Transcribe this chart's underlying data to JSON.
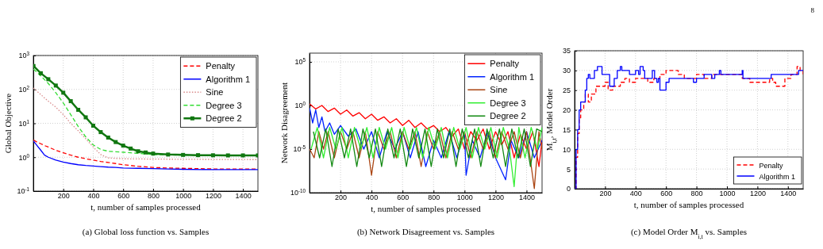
{
  "chart_data": [
    {
      "type": "line",
      "title": "(a) Global loss function vs. Samples",
      "xlabel": "t, number of samples processed",
      "ylabel": "Global Objective",
      "log": "y",
      "grid": true,
      "legend": "top right",
      "xlim": [
        0,
        1500
      ],
      "xticks": [
        200,
        400,
        600,
        800,
        1000,
        1200,
        1400
      ],
      "ylim": [
        0.1,
        1000
      ],
      "yticks": [
        {
          "value": 0.1,
          "label": "10$^{-1}$"
        },
        {
          "value": 1,
          "label": "10$^{0}$"
        },
        {
          "value": 10,
          "label": "10$^{1}$"
        },
        {
          "value": 100,
          "label": "10$^{2}$"
        },
        {
          "value": 1000,
          "label": "10$^{3}$"
        }
      ],
      "series": [
        {
          "name": "Penalty",
          "color": "#ff0000",
          "line_style": "dashed",
          "x": [
            1,
            25,
            50,
            75,
            100,
            150,
            200,
            250,
            300,
            350,
            400,
            450,
            500,
            550,
            600,
            650,
            700,
            750,
            800,
            900,
            1000,
            1100,
            1200,
            1300,
            1400,
            1500
          ],
          "values": [
            3.2,
            2.8,
            2.5,
            2.2,
            2,
            1.6,
            1.35,
            1.15,
            1,
            0.9,
            0.82,
            0.75,
            0.7,
            0.65,
            0.6,
            0.57,
            0.54,
            0.52,
            0.5,
            0.48,
            0.47,
            0.46,
            0.45,
            0.45,
            0.45,
            0.45
          ]
        },
        {
          "name": "Algorithm 1",
          "color": "#0000ff",
          "line_style": "solid",
          "x": [
            1,
            25,
            50,
            75,
            100,
            150,
            200,
            250,
            300,
            350,
            400,
            450,
            500,
            550,
            600,
            700,
            800,
            900,
            1000,
            1200,
            1500
          ],
          "values": [
            3,
            2.2,
            1.6,
            1.15,
            1,
            0.82,
            0.72,
            0.65,
            0.6,
            0.57,
            0.55,
            0.53,
            0.51,
            0.5,
            0.48,
            0.47,
            0.46,
            0.45,
            0.44,
            0.43,
            0.43
          ]
        },
        {
          "name": "Sine",
          "color": "#d98c8c",
          "line_style": "dotted",
          "x": [
            1,
            50,
            100,
            150,
            200,
            250,
            300,
            350,
            400,
            450,
            500,
            600,
            800,
            1000,
            1200,
            1500
          ],
          "values": [
            110,
            70,
            45,
            30,
            18,
            10,
            6,
            3.5,
            2,
            1.2,
            0.95,
            0.9,
            0.88,
            0.87,
            0.86,
            0.85
          ]
        },
        {
          "name": "Degree 3",
          "color": "#33dd33",
          "line_style": "dashed",
          "x": [
            1,
            50,
            100,
            150,
            200,
            250,
            300,
            350,
            400,
            450,
            500,
            550,
            600,
            650,
            700,
            800,
            1000,
            1500
          ],
          "values": [
            400,
            250,
            150,
            80,
            40,
            18,
            8,
            4,
            2.3,
            1.7,
            1.5,
            1.45,
            1.4,
            1.35,
            1.3,
            1.2,
            1.15,
            1.12
          ]
        },
        {
          "name": "Degree 2",
          "color": "#117711",
          "line_style": "solid",
          "marker": "square",
          "x": [
            1,
            50,
            100,
            150,
            200,
            250,
            300,
            350,
            400,
            450,
            500,
            550,
            600,
            650,
            700,
            750,
            800,
            900,
            1000,
            1100,
            1200,
            1300,
            1400,
            1500
          ],
          "values": [
            490,
            300,
            200,
            130,
            80,
            45,
            25,
            15,
            8.5,
            5.5,
            3.8,
            2.8,
            2.2,
            1.8,
            1.5,
            1.38,
            1.28,
            1.2,
            1.17,
            1.15,
            1.14,
            1.13,
            1.13,
            1.13
          ]
        }
      ]
    },
    {
      "type": "line",
      "title": "(b) Network Disagreement vs. Samples",
      "xlabel": "t, number of samples processed",
      "ylabel": "Network Disagreement",
      "log": "y",
      "grid": true,
      "legend": "top right",
      "xlim": [
        0,
        1500
      ],
      "xticks": [
        200,
        400,
        600,
        800,
        1000,
        1200,
        1400
      ],
      "ylim": [
        1e-10,
        1000000.0
      ],
      "yticks": [
        {
          "value": 1e-10,
          "label": "10$^{-10}$"
        },
        {
          "value": 1e-05,
          "label": "10$^{-5}$"
        },
        {
          "value": 1,
          "label": "10$^{0}$"
        },
        {
          "value": 100000.0,
          "label": "10$^{5}$"
        }
      ],
      "series": [
        {
          "name": "Penalty",
          "color": "#ff0000",
          "x": [
            1,
            40,
            80,
            120,
            160,
            200,
            240,
            280,
            320,
            360,
            400,
            440,
            480,
            520,
            560,
            600,
            640,
            680,
            720,
            760,
            800,
            840,
            880,
            920,
            960,
            1000,
            1040,
            1080,
            1120,
            1160,
            1200,
            1240,
            1280,
            1320,
            1360,
            1400,
            1440,
            1480,
            1500
          ],
          "values": [
            1.5,
            0.4,
            1,
            0.2,
            0.5,
            0.1,
            0.3,
            0.06,
            0.15,
            0.03,
            0.1,
            0.02,
            0.05,
            0.01,
            0.03,
            0.005,
            0.02,
            0.003,
            0.01,
            0.002,
            0.005,
            0.001,
            0.003,
            0.0003,
            0.002,
            1e-05,
            0.001,
            0.0001,
            0.002,
            1e-05,
            0.001,
            3e-05,
            0.001,
            1e-06,
            0.0005,
            1e-05,
            0.001,
            1e-07,
            0.0001
          ]
        },
        {
          "name": "Algorithm 1",
          "color": "#0022ff",
          "x": [
            1,
            20,
            40,
            60,
            80,
            100,
            130,
            160,
            200,
            250,
            300,
            350,
            400,
            450,
            500,
            550,
            600,
            650,
            700,
            750,
            800,
            850,
            900,
            950,
            1000,
            1010,
            1050,
            1100,
            1150,
            1200,
            1265,
            1300,
            1350,
            1400,
            1450,
            1500
          ],
          "values": [
            0.5,
            0.01,
            0.3,
            0.003,
            0.05,
            0.001,
            0.01,
            0.0005,
            0.005,
            0.0003,
            0.002,
            1e-05,
            0.001,
            1e-06,
            0.001,
            1e-05,
            0.001,
            1e-06,
            0.001,
            1e-07,
            0.0001,
            1e-06,
            0.001,
            1e-06,
            0.001,
            1e-08,
            0.0001,
            1e-06,
            0.001,
            1e-06,
            3e-09,
            0.0001,
            1e-06,
            0.001,
            1e-06,
            0.0001
          ]
        },
        {
          "name": "Sine",
          "color": "#aa4411",
          "x": [
            1,
            30,
            60,
            90,
            120,
            160,
            200,
            240,
            280,
            320,
            360,
            400,
            440,
            480,
            520,
            560,
            600,
            640,
            680,
            720,
            760,
            800,
            840,
            880,
            920,
            960,
            1000,
            1040,
            1080,
            1120,
            1160,
            1200,
            1240,
            1280,
            1320,
            1360,
            1400,
            1450,
            1480,
            1500
          ],
          "values": [
            1e-05,
            1e-06,
            0.001,
            1e-05,
            0.001,
            1e-06,
            0.001,
            1e-05,
            0.001,
            1e-06,
            0.001,
            1e-08,
            0.001,
            1e-05,
            0.001,
            1e-06,
            0.001,
            1e-05,
            0.001,
            1e-07,
            0.001,
            1e-05,
            0.001,
            1e-06,
            0.001,
            1e-05,
            0.001,
            1e-06,
            0.001,
            1e-05,
            0.001,
            1e-06,
            0.001,
            1e-05,
            0.001,
            1e-06,
            0.001,
            3e-10,
            0.001,
            1e-05
          ]
        },
        {
          "name": "Degree 3",
          "color": "#33ee33",
          "x": [
            10,
            50,
            90,
            130,
            170,
            210,
            250,
            290,
            330,
            370,
            410,
            450,
            490,
            530,
            570,
            610,
            650,
            690,
            730,
            770,
            810,
            850,
            890,
            930,
            970,
            1010,
            1050,
            1090,
            1130,
            1170,
            1210,
            1250,
            1290,
            1320,
            1350,
            1390,
            1430,
            1470,
            1500
          ],
          "values": [
            1e-05,
            0.003,
            1e-06,
            0.003,
            1e-05,
            0.003,
            1e-06,
            0.003,
            1e-05,
            0.003,
            1e-06,
            0.003,
            1e-05,
            0.003,
            1e-06,
            0.003,
            1e-05,
            0.003,
            1e-06,
            0.003,
            1e-05,
            0.003,
            1e-06,
            0.003,
            1e-05,
            0.003,
            1e-06,
            0.003,
            1e-05,
            0.003,
            1e-06,
            0.003,
            1e-05,
            5e-10,
            0.003,
            1e-06,
            0.003,
            1e-05,
            0.003
          ]
        },
        {
          "name": "Degree 2",
          "color": "#118811",
          "x": [
            25,
            65,
            105,
            145,
            185,
            225,
            265,
            305,
            345,
            385,
            425,
            465,
            505,
            545,
            585,
            625,
            665,
            705,
            745,
            785,
            825,
            865,
            905,
            945,
            985,
            1025,
            1065,
            1105,
            1145,
            1185,
            1225,
            1265,
            1305,
            1345,
            1385,
            1425,
            1465,
            1500
          ],
          "values": [
            0.001,
            1e-06,
            0.002,
            1e-07,
            0.002,
            1e-06,
            0.002,
            1e-07,
            0.002,
            1e-06,
            0.002,
            1e-07,
            0.002,
            1e-06,
            0.002,
            1e-07,
            0.002,
            1e-06,
            0.002,
            1e-07,
            0.002,
            1e-06,
            0.002,
            1e-07,
            0.002,
            1e-06,
            0.002,
            1e-07,
            0.002,
            1e-06,
            0.002,
            1e-07,
            0.002,
            1e-06,
            0.002,
            1e-07,
            0.002,
            0.001
          ]
        }
      ]
    },
    {
      "type": "step",
      "title": "(c) Model Order M$_{i,t}$ vs. Samples",
      "xlabel": "t, number of samples processed",
      "ylabel": "M$_{i,t}$, Model Order",
      "grid": true,
      "legend": "bottom right",
      "annotations": [
        "8"
      ],
      "xlim": [
        0,
        1500
      ],
      "xticks": [
        200,
        400,
        600,
        800,
        1000,
        1200,
        1400
      ],
      "ylim": [
        0,
        35
      ],
      "yticks": [
        0,
        5,
        10,
        15,
        20,
        25,
        30,
        35
      ],
      "series": [
        {
          "name": "Penalty",
          "color": "#ff0000",
          "line_style": "dashed",
          "x": [
            1,
            10,
            20,
            30,
            40,
            60,
            70,
            90,
            110,
            140,
            160,
            200,
            220,
            250,
            300,
            330,
            360,
            400,
            480,
            520,
            560,
            600,
            660,
            680,
            720,
            800,
            850,
            900,
            1000,
            1100,
            1150,
            1250,
            1280,
            1300,
            1320,
            1350,
            1380,
            1420,
            1460,
            1480,
            1500
          ],
          "values": [
            0,
            8,
            14,
            18,
            20,
            22,
            24,
            22,
            24,
            26,
            26,
            27,
            25,
            26,
            27,
            28,
            27,
            28,
            27,
            28,
            29,
            30,
            30,
            29,
            28,
            29,
            28,
            29,
            29,
            28,
            27,
            27,
            28,
            27,
            26,
            26,
            28,
            29,
            31,
            30,
            29
          ]
        },
        {
          "name": "Algorithm 1",
          "color": "#0000ff",
          "line_style": "solid",
          "x": [
            1,
            10,
            20,
            30,
            40,
            60,
            70,
            80,
            90,
            100,
            130,
            150,
            170,
            180,
            220,
            230,
            260,
            280,
            300,
            310,
            350,
            360,
            400,
            420,
            430,
            450,
            460,
            510,
            525,
            540,
            550,
            560,
            580,
            600,
            620,
            700,
            780,
            800,
            850,
            900,
            920,
            950,
            960,
            1100,
            1105,
            1280,
            1290,
            1460,
            1470,
            1500
          ],
          "values": [
            0,
            10,
            15,
            20,
            22,
            22,
            25,
            28,
            29,
            28,
            30,
            31,
            31,
            29,
            29,
            26,
            28,
            30,
            31,
            30,
            30,
            29,
            30,
            29,
            31,
            30,
            28,
            30,
            28,
            27,
            28,
            25,
            25,
            27,
            28,
            28,
            27,
            28,
            29,
            28,
            29,
            30,
            29,
            30,
            28,
            28,
            29,
            29,
            30,
            30
          ]
        }
      ]
    }
  ]
}
